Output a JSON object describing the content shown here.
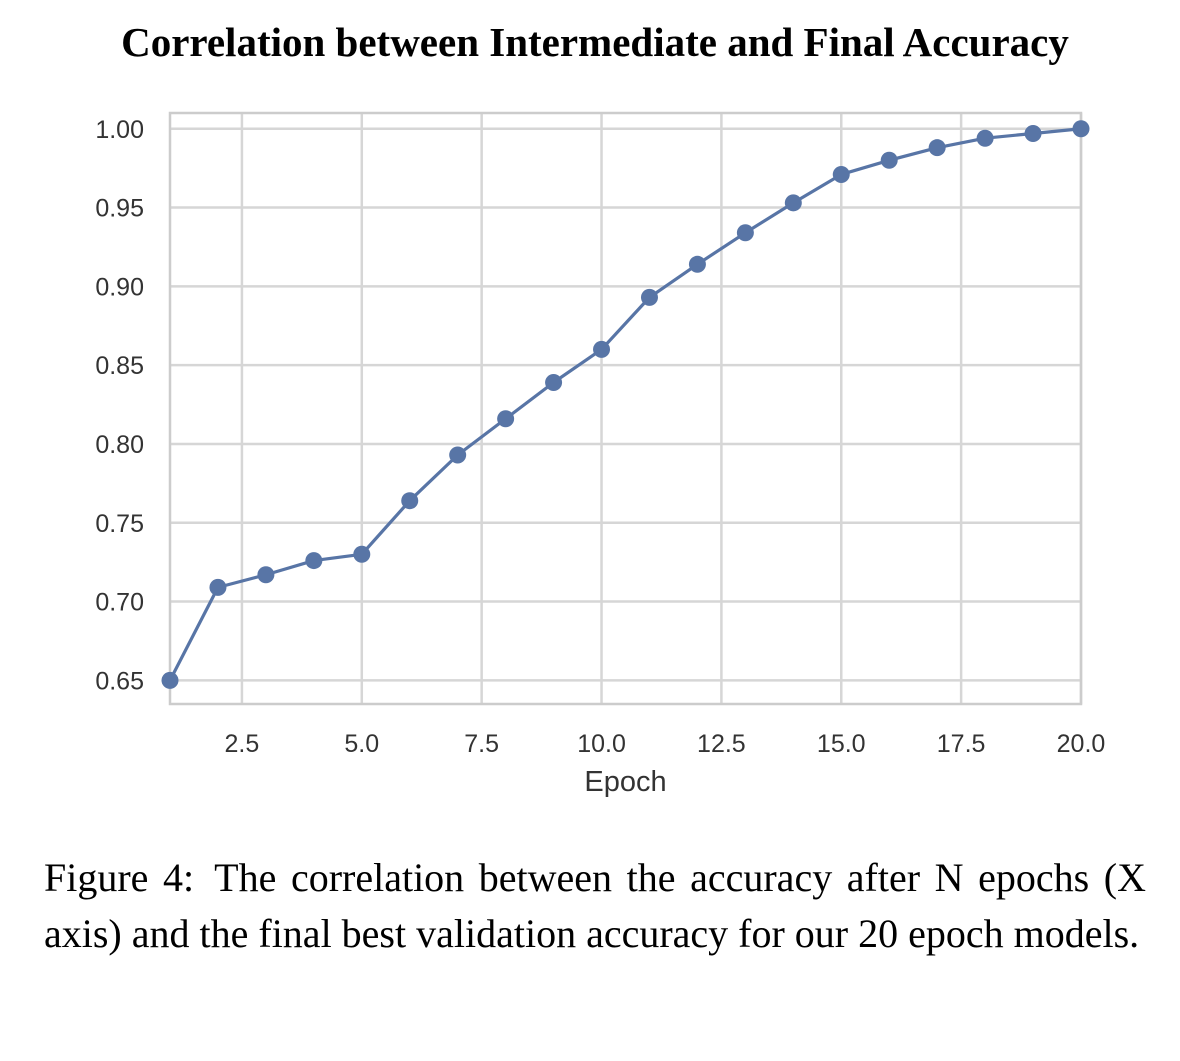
{
  "chart_data": {
    "type": "line",
    "title": "Correlation between Intermediate and Final Accuracy",
    "xlabel": "Epoch",
    "ylabel": "",
    "xlim": [
      1,
      20
    ],
    "ylim": [
      0.635,
      1.01
    ],
    "x_ticks": [
      "2.5",
      "5.0",
      "7.5",
      "10.0",
      "12.5",
      "15.0",
      "17.5",
      "20.0"
    ],
    "y_ticks": [
      "0.65",
      "0.70",
      "0.75",
      "0.80",
      "0.85",
      "0.90",
      "0.95",
      "1.00"
    ],
    "grid": true,
    "series": [
      {
        "color": "#5875a6",
        "marker": "circle",
        "x": [
          1,
          2,
          3,
          4,
          5,
          6,
          7,
          8,
          9,
          10,
          11,
          12,
          13,
          14,
          15,
          16,
          17,
          18,
          19,
          20
        ],
        "y": [
          0.65,
          0.709,
          0.717,
          0.726,
          0.73,
          0.764,
          0.793,
          0.816,
          0.839,
          0.86,
          0.893,
          0.914,
          0.934,
          0.953,
          0.971,
          0.98,
          0.988,
          0.994,
          0.997,
          1.0
        ]
      }
    ]
  },
  "caption": {
    "label": "Figure 4:",
    "text": "The correlation between the accuracy after N epochs (X axis) and the final best validation accuracy for our 20 epoch models."
  }
}
